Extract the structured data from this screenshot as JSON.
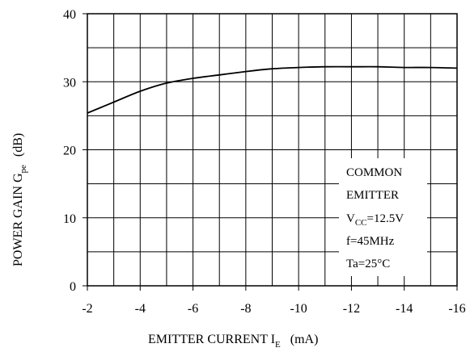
{
  "chart_data": {
    "type": "line",
    "title": "",
    "xlabel": {
      "main": "EMITTER CURRENT I",
      "sub": "E",
      "unit": "(mA)"
    },
    "ylabel": {
      "main": "POWER GAIN G",
      "sub": "pe",
      "unit": "(dB)"
    },
    "xlim": [
      -2,
      -16
    ],
    "ylim": [
      0,
      40
    ],
    "x_tick_labels": [
      "-2",
      "-4",
      "-6",
      "-8",
      "-10",
      "-12",
      "-14",
      "-16"
    ],
    "y_tick_labels": [
      "0",
      "10",
      "20",
      "30",
      "40"
    ],
    "grid": true,
    "series": [
      {
        "x": [
          -2,
          -3,
          -4,
          -5,
          -6,
          -7,
          -8,
          -9,
          -10,
          -11,
          -12,
          -13,
          -14,
          -15,
          -16
        ],
        "y": [
          25.4,
          27.0,
          28.6,
          29.8,
          30.5,
          31.0,
          31.5,
          31.9,
          32.1,
          32.2,
          32.2,
          32.2,
          32.1,
          32.1,
          32.0
        ]
      }
    ],
    "annotation": {
      "line1": "COMMON",
      "line2": "EMITTER",
      "vcc_main": "V",
      "vcc_sub": "CC",
      "vcc_value": "=12.5V",
      "freq": "f=45MHz",
      "temp": "Ta=25°C"
    }
  }
}
